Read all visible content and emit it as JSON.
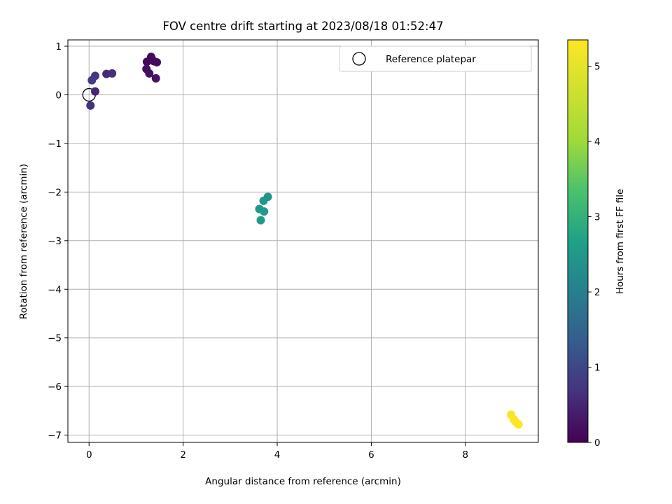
{
  "chart_data": {
    "type": "scatter",
    "title": "FOV centre drift starting at 2023/08/18 01:52:47",
    "xlabel": "Angular distance from reference (arcmin)",
    "ylabel": "Rotation from reference (arcmin)",
    "xlim": [
      -0.45,
      9.55
    ],
    "ylim": [
      -7.15,
      1.13
    ],
    "xticks": [
      0,
      2,
      4,
      6,
      8
    ],
    "yticks": [
      1,
      0,
      -1,
      -2,
      -3,
      -4,
      -5,
      -6,
      -7
    ],
    "grid": true,
    "legend": {
      "position": "top-right",
      "entries": [
        "Reference platepar"
      ]
    },
    "reference_point": {
      "x": 0,
      "y": 0
    },
    "colormap": "viridis",
    "colorbar": {
      "label": "Hours from first FF file",
      "range": [
        0,
        5.35
      ],
      "ticks": [
        0,
        1,
        2,
        3,
        4,
        5
      ]
    },
    "points": [
      {
        "x": 1.23,
        "y": 0.68,
        "hours": 0.05
      },
      {
        "x": 1.32,
        "y": 0.78,
        "hours": 0.1
      },
      {
        "x": 1.38,
        "y": 0.69,
        "hours": 0.12
      },
      {
        "x": 1.44,
        "y": 0.67,
        "hours": 0.15
      },
      {
        "x": 1.22,
        "y": 0.53,
        "hours": 0.18
      },
      {
        "x": 1.28,
        "y": 0.44,
        "hours": 0.22
      },
      {
        "x": 1.42,
        "y": 0.34,
        "hours": 0.25
      },
      {
        "x": 0.13,
        "y": 0.07,
        "hours": 0.55
      },
      {
        "x": 0.37,
        "y": 0.43,
        "hours": 0.65
      },
      {
        "x": 0.49,
        "y": 0.44,
        "hours": 0.7
      },
      {
        "x": 0.13,
        "y": 0.39,
        "hours": 0.85
      },
      {
        "x": 0.06,
        "y": 0.3,
        "hours": 0.95
      },
      {
        "x": 0.03,
        "y": -0.22,
        "hours": 0.75
      },
      {
        "x": 3.8,
        "y": -2.1,
        "hours": 2.8
      },
      {
        "x": 3.71,
        "y": -2.18,
        "hours": 2.82
      },
      {
        "x": 3.62,
        "y": -2.35,
        "hours": 2.85
      },
      {
        "x": 3.72,
        "y": -2.4,
        "hours": 2.88
      },
      {
        "x": 3.65,
        "y": -2.58,
        "hours": 2.9
      },
      {
        "x": 8.97,
        "y": -6.58,
        "hours": 5.3
      },
      {
        "x": 9.03,
        "y": -6.68,
        "hours": 5.32
      },
      {
        "x": 9.08,
        "y": -6.74,
        "hours": 5.33
      },
      {
        "x": 9.13,
        "y": -6.78,
        "hours": 5.35
      }
    ]
  }
}
